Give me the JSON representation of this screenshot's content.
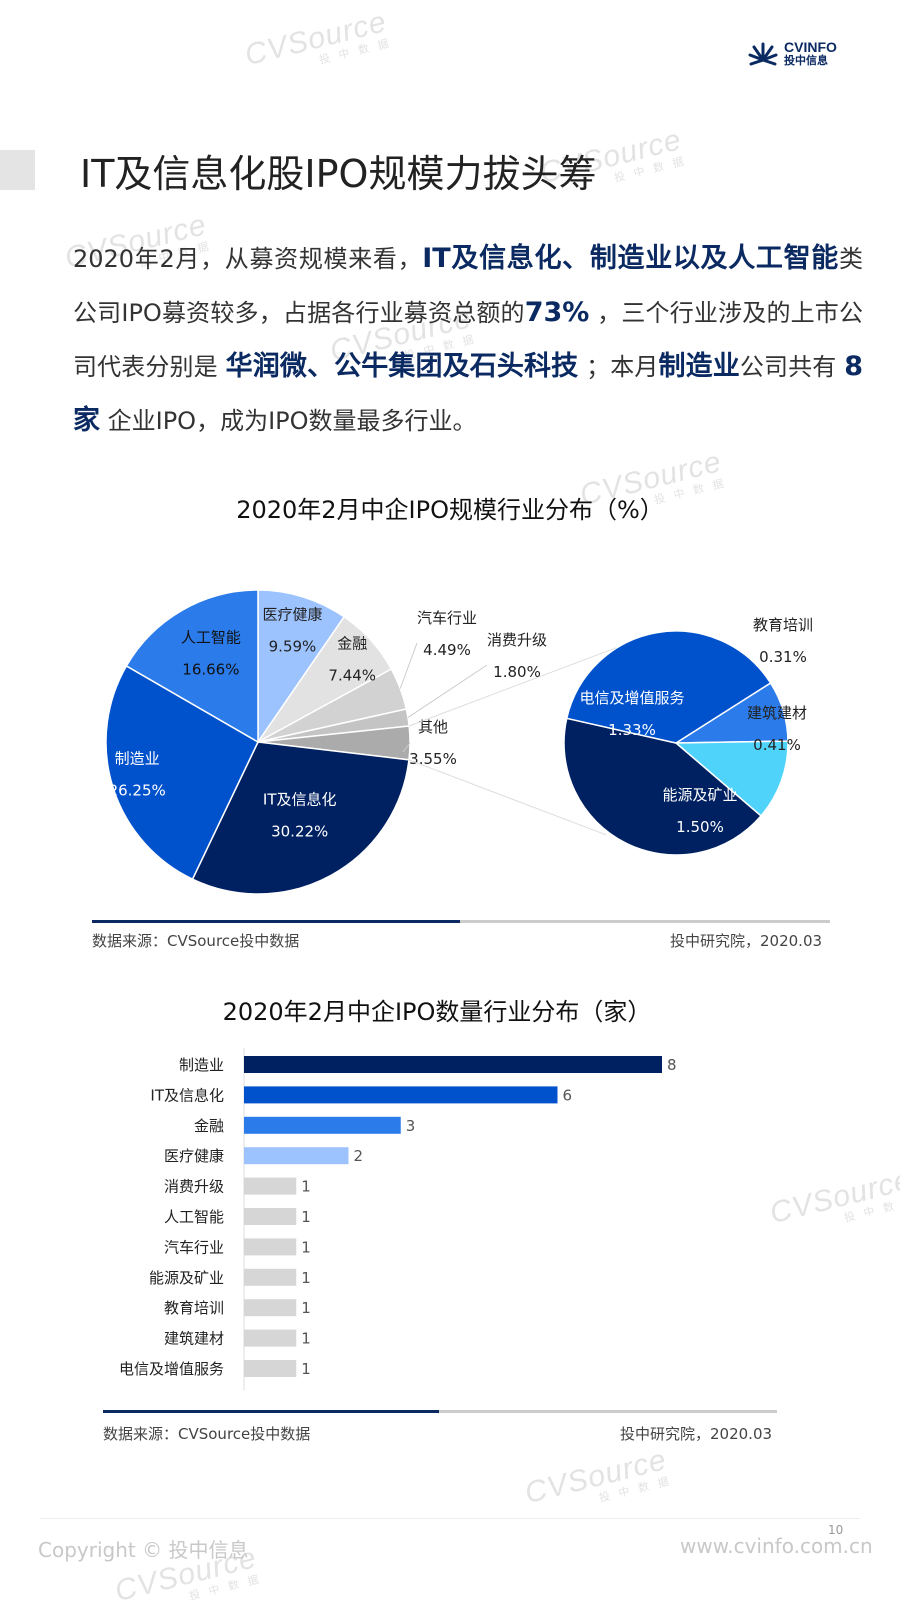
{
  "header": {
    "logo_name": "CVINFO",
    "logo_sub": "投中信息",
    "watermark": "CVSource",
    "watermark_sub": "投 中 数 据"
  },
  "page": {
    "title": "IT及信息化股IPO规模力拔头筹",
    "intro": [
      {
        "t": "2020年2月，从募资规模来看，",
        "h": false
      },
      {
        "t": "IT及信息化、制造业以及人工智能",
        "h": true
      },
      {
        "t": "类公司IPO募资较多，占据各行业募资总额的",
        "h": false
      },
      {
        "t": "73%",
        "h": true
      },
      {
        "t": " ，三个行业涉及的上市公司代表分别是 ",
        "h": false
      },
      {
        "t": "华润微、公牛集团及石头科技",
        "h": true
      },
      {
        "t": " ；本月",
        "h": false
      },
      {
        "t": "制造业",
        "h": true
      },
      {
        "t": "公司共有 ",
        "h": false
      },
      {
        "t": "8 家",
        "h": true
      },
      {
        "t": " 企业IPO，成为IPO数量最多行业。",
        "h": false
      }
    ]
  },
  "chart_data": [
    {
      "type": "pie",
      "title": "2020年2月中企IPO规模行业分布（%）",
      "slices": [
        {
          "label": "医疗健康",
          "value": 9.59,
          "display": "9.59%",
          "color": "#9dc3ff"
        },
        {
          "label": "金融",
          "value": 7.44,
          "display": "7.44%",
          "color": "#e2e2e2"
        },
        {
          "label": "汽车行业",
          "value": 4.49,
          "display": "4.49%",
          "color": "#d2d2d2"
        },
        {
          "label": "消费升级",
          "value": 1.8,
          "display": "1.80%",
          "color": "#c4c4c4"
        },
        {
          "label": "其他",
          "value": 3.55,
          "display": "3.55%",
          "color": "#ababab"
        },
        {
          "label": "IT及信息化",
          "value": 30.22,
          "display": "30.22%",
          "color": "#002161"
        },
        {
          "label": "制造业",
          "value": 26.25,
          "display": "26.25%",
          "color": "#0052cc"
        },
        {
          "label": "人工智能",
          "value": 16.66,
          "display": "16.66%",
          "color": "#2b7bea"
        }
      ],
      "breakout": {
        "of": "其他",
        "slices": [
          {
            "label": "教育培训",
            "value": 0.31,
            "display": "0.31%",
            "color": "#2b7bea"
          },
          {
            "label": "建筑建材",
            "value": 0.41,
            "display": "0.41%",
            "color": "#4fd3fb"
          },
          {
            "label": "能源及矿业",
            "value": 1.5,
            "display": "1.50%",
            "color": "#002161"
          },
          {
            "label": "电信及增值服务",
            "value": 1.33,
            "display": "1.33%",
            "color": "#0052cc"
          }
        ]
      },
      "source": "数据来源：CVSource投中数据",
      "credit": "投中研究院，2020.03"
    },
    {
      "type": "bar",
      "orientation": "horizontal",
      "title": "2020年2月中企IPO数量行业分布（家）",
      "categories": [
        "制造业",
        "IT及信息化",
        "金融",
        "医疗健康",
        "消费升级",
        "人工智能",
        "汽车行业",
        "能源及矿业",
        "教育培训",
        "建筑建材",
        "电信及增值服务"
      ],
      "values": [
        8,
        6,
        3,
        2,
        1,
        1,
        1,
        1,
        1,
        1,
        1
      ],
      "colors": [
        "#002161",
        "#0052cc",
        "#2b7bea",
        "#9dc3ff",
        "#d6d6d6",
        "#d6d6d6",
        "#d6d6d6",
        "#d6d6d6",
        "#d6d6d6",
        "#d6d6d6",
        "#d6d6d6"
      ],
      "xlim": [
        0,
        8
      ],
      "source": "数据来源：CVSource投中数据",
      "credit": "投中研究院，2020.03"
    }
  ],
  "footer": {
    "copyright": "Copyright © 投中信息",
    "website": "www.cvinfo.com.cn",
    "page_number": "10"
  }
}
